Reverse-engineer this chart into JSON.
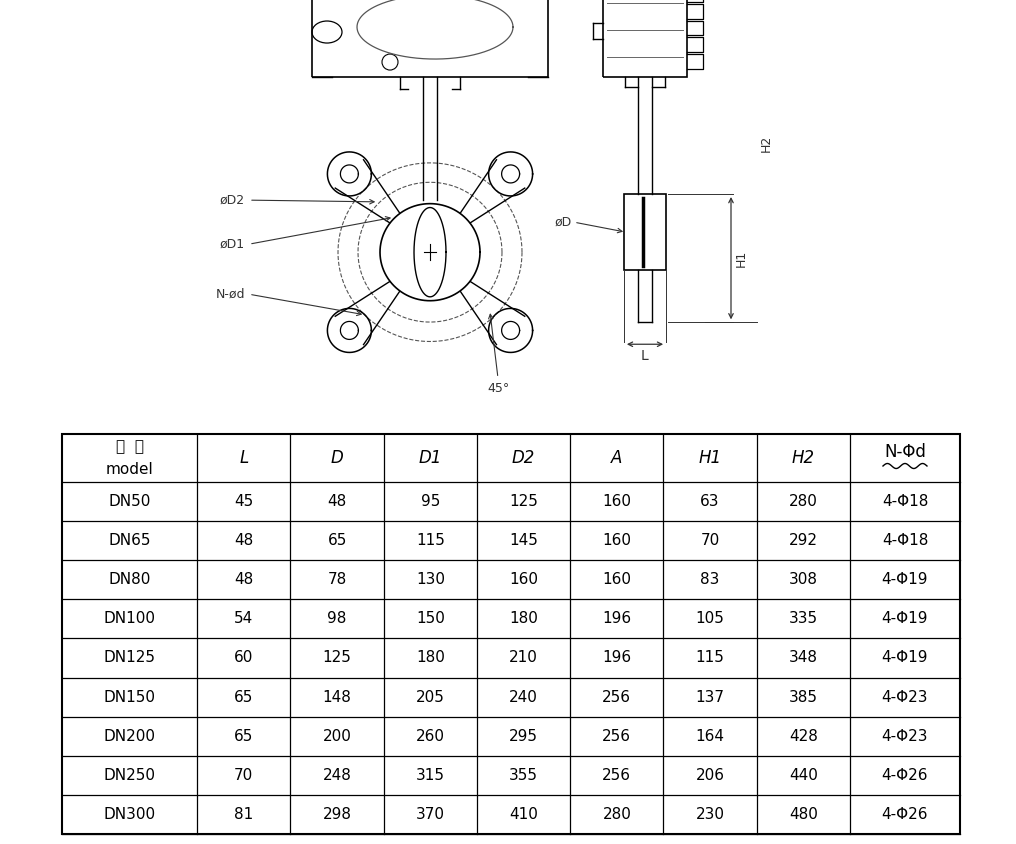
{
  "headers_cn": "型  号",
  "headers_en": "model",
  "col_labels": [
    "L",
    "D",
    "D1",
    "D2",
    "A",
    "H1",
    "H2",
    "N-Φd"
  ],
  "rows": [
    [
      "DN50",
      "45",
      "48",
      "95",
      "125",
      "160",
      "63",
      "280",
      "4-Φ18"
    ],
    [
      "DN65",
      "48",
      "65",
      "115",
      "145",
      "160",
      "70",
      "292",
      "4-Φ18"
    ],
    [
      "DN80",
      "48",
      "78",
      "130",
      "160",
      "160",
      "83",
      "308",
      "4-Φ19"
    ],
    [
      "DN100",
      "54",
      "98",
      "150",
      "180",
      "196",
      "105",
      "335",
      "4-Φ19"
    ],
    [
      "DN125",
      "60",
      "125",
      "180",
      "210",
      "196",
      "115",
      "348",
      "4-Φ19"
    ],
    [
      "DN150",
      "65",
      "148",
      "205",
      "240",
      "256",
      "137",
      "385",
      "4-Φ23"
    ],
    [
      "DN200",
      "65",
      "200",
      "260",
      "295",
      "256",
      "164",
      "428",
      "4-Φ23"
    ],
    [
      "DN250",
      "70",
      "248",
      "315",
      "355",
      "256",
      "206",
      "440",
      "4-Φ26"
    ],
    [
      "DN300",
      "81",
      "298",
      "370",
      "410",
      "280",
      "230",
      "480",
      "4-Φ26"
    ]
  ],
  "bg_color": "#ffffff",
  "line_color": "#000000",
  "text_color": "#000000",
  "dim_color": "#333333"
}
